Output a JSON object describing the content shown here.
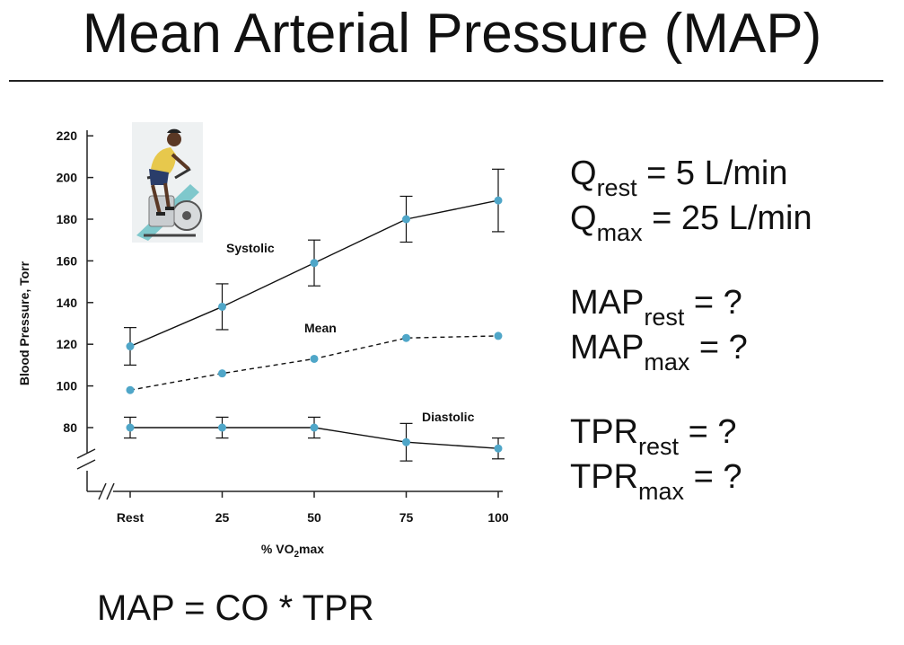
{
  "title": "Mean Arterial Pressure (MAP)",
  "chart_data": {
    "type": "line",
    "ylabel": "Blood Pressure, Torr",
    "xlabel": "% VO",
    "xlabel_sub": "2",
    "xlabel_tail": "max",
    "yticks": [
      80,
      100,
      120,
      140,
      160,
      180,
      200,
      220
    ],
    "ylim": [
      70,
      220
    ],
    "categories": [
      "Rest",
      "25",
      "50",
      "75",
      "100"
    ],
    "series": [
      {
        "name": "Systolic",
        "label": "Systolic",
        "dashed": false,
        "values": [
          119,
          138,
          159,
          180,
          189
        ],
        "err": [
          9,
          11,
          11,
          11,
          15
        ],
        "color": "#4fa6c8"
      },
      {
        "name": "Mean",
        "label": "Mean",
        "dashed": true,
        "values": [
          98,
          106,
          113,
          123,
          124
        ],
        "err": null,
        "color": "#4fa6c8"
      },
      {
        "name": "Diastolic",
        "label": "Diastolic",
        "dashed": false,
        "values": [
          80,
          80,
          80,
          73,
          70
        ],
        "err": [
          5,
          5,
          5,
          9,
          5
        ],
        "color": "#4fa6c8"
      }
    ]
  },
  "notes": {
    "q_rest": {
      "base": "Q",
      "sub": "rest",
      "tail": " = 5 L/min"
    },
    "q_max": {
      "base": "Q",
      "sub": "max",
      "tail": " = 25 L/min"
    },
    "map_rest": {
      "base": "MAP",
      "sub": "rest",
      "tail": " = ?"
    },
    "map_max": {
      "base": "MAP",
      "sub": "max",
      "tail": " = ?"
    },
    "tpr_rest": {
      "base": "TPR",
      "sub": "rest",
      "tail": " = ?"
    },
    "tpr_max": {
      "base": "TPR",
      "sub": "max",
      "tail": " = ?"
    }
  },
  "formula": "MAP = CO * TPR",
  "image": {
    "icon": "cyclist-icon"
  }
}
